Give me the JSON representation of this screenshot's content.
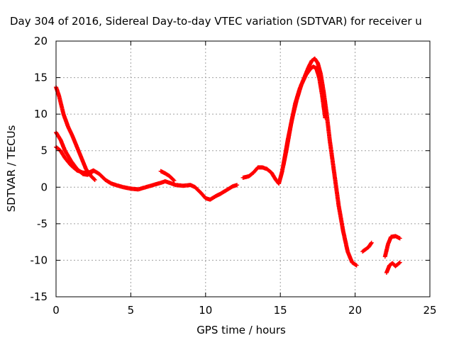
{
  "chart_data": {
    "type": "scatter",
    "title": "Day 304 of 2016, Sidereal Day-to-day VTEC variation (SDTVAR) for receiver u",
    "xlabel": "GPS time / hours",
    "ylabel": "SDTVAR / TECUs",
    "xlim": [
      0,
      25
    ],
    "ylim": [
      -15,
      20
    ],
    "xticks": [
      "0",
      "5",
      "10",
      "15",
      "20",
      "25"
    ],
    "yticks": [
      "-15",
      "-10",
      "-5",
      "0",
      "5",
      "10",
      "15",
      "20"
    ],
    "grid": true,
    "marker": "+",
    "series": [
      {
        "color": "#ff0000",
        "x": [
          0.0,
          0.2,
          0.5,
          0.8,
          1.1,
          1.4,
          1.7,
          2.0,
          2.3,
          2.6
        ],
        "y": [
          13.7,
          12.5,
          10.0,
          8.3,
          7.0,
          5.5,
          4.0,
          2.5,
          1.6,
          1.0
        ]
      },
      {
        "color": "#ff0000",
        "x": [
          0.0,
          0.3,
          0.6,
          1.0,
          1.4,
          1.8,
          2.1,
          2.4
        ],
        "y": [
          7.5,
          6.5,
          5.0,
          3.6,
          2.5,
          1.8,
          1.7,
          2.0
        ]
      },
      {
        "color": "#ff0000",
        "x": [
          0.0,
          0.3,
          0.6,
          1.0,
          1.4,
          1.8,
          2.2,
          2.5,
          2.9,
          3.3,
          3.7,
          4.0,
          4.5,
          5.0,
          5.5,
          6.0,
          6.5,
          7.0,
          7.3,
          7.6,
          8.0,
          8.5,
          9.0,
          9.3,
          9.7,
          10.0,
          10.3,
          10.7,
          11.0,
          11.4,
          11.8,
          12.1
        ],
        "y": [
          5.5,
          5.0,
          4.0,
          3.0,
          2.3,
          2.0,
          2.0,
          2.3,
          1.8,
          1.0,
          0.5,
          0.3,
          0.0,
          -0.2,
          -0.3,
          0.0,
          0.3,
          0.6,
          0.8,
          0.6,
          0.3,
          0.2,
          0.3,
          0.0,
          -0.8,
          -1.5,
          -1.7,
          -1.2,
          -0.9,
          -0.4,
          0.1,
          0.3
        ]
      },
      {
        "color": "#ff0000",
        "x": [
          7.0,
          7.3,
          7.6,
          7.9
        ],
        "y": [
          2.2,
          1.9,
          1.5,
          0.9
        ]
      },
      {
        "color": "#ff0000",
        "x": [
          12.5,
          12.9,
          13.2,
          13.5,
          13.8,
          14.1,
          14.4,
          14.7,
          14.9
        ],
        "y": [
          1.3,
          1.5,
          2.0,
          2.7,
          2.7,
          2.5,
          2.0,
          1.0,
          0.5
        ]
      },
      {
        "color": "#ff0000",
        "x": [
          14.9,
          15.1,
          15.4,
          15.7,
          16.0,
          16.3,
          16.6,
          16.9,
          17.1,
          17.3,
          17.5,
          17.7,
          17.9,
          18.1,
          18.3,
          18.6,
          18.9,
          19.2,
          19.5,
          19.8,
          20.1
        ],
        "y": [
          0.5,
          2.0,
          5.0,
          8.5,
          11.5,
          13.5,
          15.0,
          16.5,
          17.3,
          17.6,
          17.0,
          15.5,
          13.0,
          10.0,
          6.5,
          2.0,
          -2.5,
          -6.0,
          -8.8,
          -10.3,
          -10.7
        ]
      },
      {
        "color": "#ff0000",
        "x": [
          15.2,
          15.5,
          15.8,
          16.1,
          16.4,
          16.7,
          17.0,
          17.2,
          17.4,
          17.6,
          17.8,
          18.0
        ],
        "y": [
          3.0,
          6.5,
          9.5,
          12.0,
          14.0,
          15.3,
          16.2,
          16.5,
          16.3,
          15.0,
          12.5,
          9.5
        ]
      },
      {
        "color": "#ff0000",
        "x": [
          20.5,
          20.7,
          20.9,
          21.1
        ],
        "y": [
          -8.8,
          -8.5,
          -8.2,
          -7.6
        ]
      },
      {
        "color": "#ff0000",
        "x": [
          22.0,
          22.2,
          22.4,
          22.7,
          23.0
        ],
        "y": [
          -9.5,
          -7.8,
          -6.8,
          -6.7,
          -7.0
        ]
      },
      {
        "color": "#ff0000",
        "x": [
          22.1,
          22.3,
          22.5,
          22.7,
          23.0
        ],
        "y": [
          -11.7,
          -10.7,
          -10.4,
          -10.8,
          -10.3
        ]
      }
    ]
  }
}
